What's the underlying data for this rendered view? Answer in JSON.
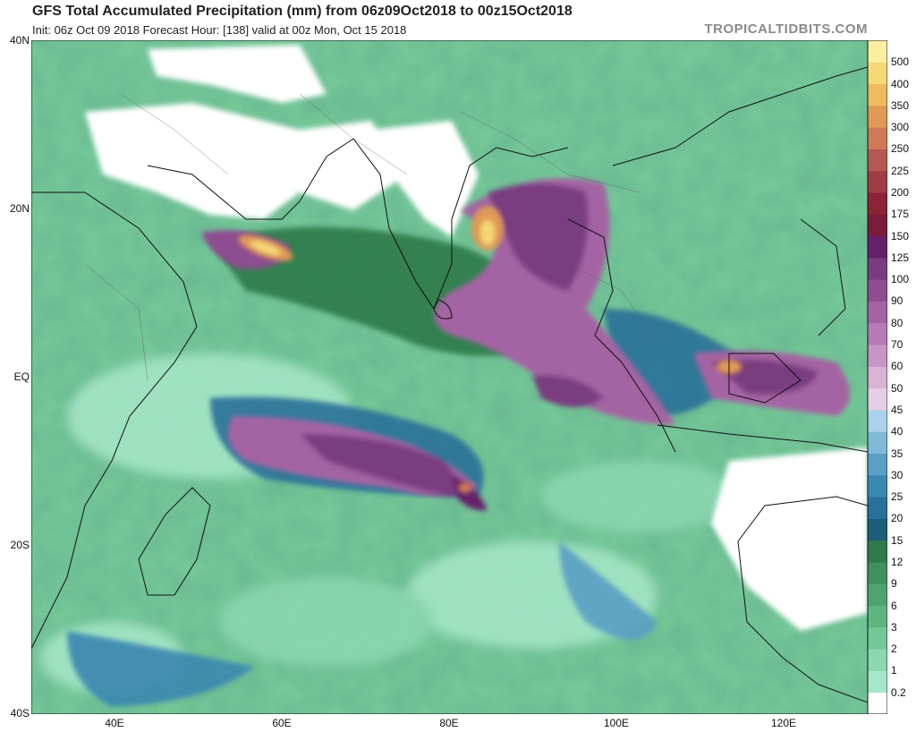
{
  "header": {
    "title": "GFS Total Accumulated Precipitation (mm) from 06z09Oct2018 to 00z15Oct2018",
    "subtitle": "Init: 06z Oct 09 2018   Forecast Hour: [138]   valid at 00z Mon, Oct 15 2018",
    "brand": "TROPICALTIDBITS.COM"
  },
  "map": {
    "lat_labels": [
      "40N",
      "20N",
      "EQ",
      "20S",
      "40S"
    ],
    "lat_values": [
      40,
      20,
      0,
      -20,
      -40
    ],
    "lon_labels": [
      "40E",
      "60E",
      "80E",
      "100E",
      "120E"
    ],
    "lon_values": [
      40,
      60,
      80,
      100,
      120
    ],
    "lon_range": [
      30,
      130
    ],
    "lat_range": [
      -40,
      40
    ]
  },
  "colorbar": {
    "labels": [
      "0.2",
      "1",
      "2",
      "3",
      "6",
      "9",
      "12",
      "15",
      "20",
      "25",
      "30",
      "35",
      "40",
      "45",
      "50",
      "60",
      "70",
      "80",
      "90",
      "100",
      "125",
      "150",
      "175",
      "200",
      "225",
      "250",
      "300",
      "350",
      "400",
      "500"
    ],
    "colors": [
      "#ffffff",
      "#a7e7c9",
      "#8cd7b0",
      "#74c797",
      "#5fb580",
      "#4ea36d",
      "#3f905b",
      "#2f7a4a",
      "#1a5e7a",
      "#2a7199",
      "#3a87b0",
      "#5a9fc4",
      "#7fb9d7",
      "#a9d3ea",
      "#e6cfe4",
      "#d9b2d6",
      "#c994c6",
      "#b77bb5",
      "#a463a3",
      "#8e4d91",
      "#7a3c80",
      "#65206a",
      "#7a1a3c",
      "#8b2236",
      "#a03d44",
      "#b65852",
      "#cf7a56",
      "#e09a55",
      "#f0bb5e",
      "#f6d877",
      "#fbeea0"
    ]
  },
  "chart_data": {
    "type": "heatmap",
    "title": "GFS Total Accumulated Precipitation (mm) from 06z09Oct2018 to 00z15Oct2018",
    "colorbar_ticks": [
      0.2,
      1,
      2,
      3,
      6,
      9,
      12,
      15,
      20,
      25,
      30,
      35,
      40,
      45,
      50,
      60,
      70,
      80,
      90,
      100,
      125,
      150,
      175,
      200,
      225,
      250,
      300,
      350,
      400,
      500
    ],
    "x_ticks": [
      "40E",
      "60E",
      "80E",
      "100E",
      "120E"
    ],
    "y_ticks": [
      "40N",
      "20N",
      "EQ",
      "20S",
      "40S"
    ],
    "xlim": [
      30,
      130
    ],
    "ylim": [
      -40,
      40
    ]
  }
}
